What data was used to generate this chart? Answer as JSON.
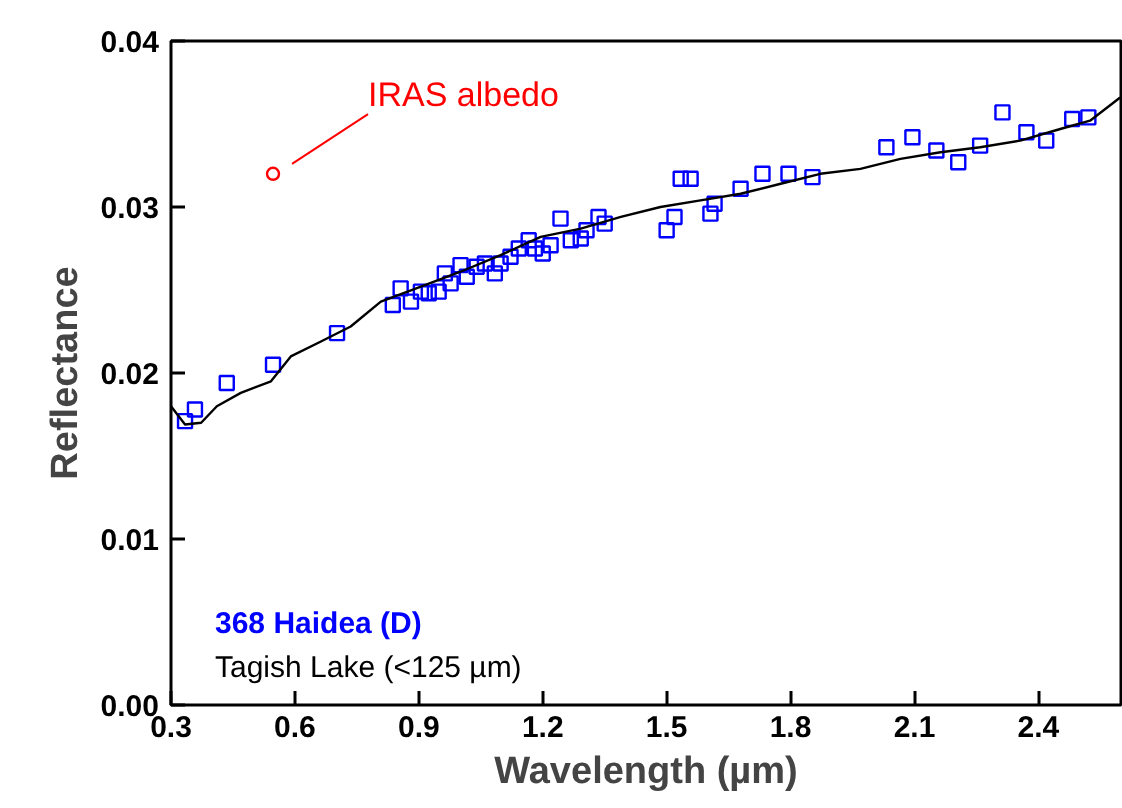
{
  "chart_data": {
    "type": "scatter",
    "xlabel": "Wavelength (µm)",
    "ylabel": "Reflectance",
    "xlim": [
      0.3,
      2.6
    ],
    "ylim": [
      0,
      0.04
    ],
    "xticks": [
      0.3,
      0.6,
      0.9,
      1.2,
      1.5,
      1.8,
      2.1,
      2.4
    ],
    "yticks": [
      {
        "value": 0,
        "label": "0.00"
      },
      {
        "value": 0.01,
        "label": "0.01"
      },
      {
        "value": 0.02,
        "label": "0.02"
      },
      {
        "value": 0.03,
        "label": "0.03"
      },
      {
        "value": 0.04,
        "label": "0.04"
      }
    ],
    "grid": false,
    "legend": "bottom left",
    "series": [
      {
        "name": "368 Haidea (D)",
        "marker": "square",
        "color": "#0000ff",
        "x": [
          0.334,
          0.358,
          0.435,
          0.547,
          0.702,
          0.837,
          0.856,
          0.881,
          0.905,
          0.924,
          0.948,
          0.963,
          0.977,
          1.001,
          1.016,
          1.04,
          1.06,
          1.084,
          1.098,
          1.122,
          1.142,
          1.166,
          1.181,
          1.2,
          1.219,
          1.243,
          1.268,
          1.292,
          1.306,
          1.335,
          1.35,
          1.5,
          1.519,
          1.534,
          1.558,
          1.606,
          1.616,
          1.679,
          1.732,
          1.795,
          1.853,
          2.032,
          2.095,
          2.153,
          2.206,
          2.259,
          2.313,
          2.371,
          2.419,
          2.482,
          2.521
        ],
        "values": [
          0.0171,
          0.0178,
          0.0194,
          0.0205,
          0.0224,
          0.0241,
          0.0251,
          0.0243,
          0.0249,
          0.0248,
          0.0249,
          0.026,
          0.0254,
          0.0265,
          0.0258,
          0.0264,
          0.0266,
          0.026,
          0.0266,
          0.027,
          0.0275,
          0.028,
          0.0275,
          0.0272,
          0.0277,
          0.0293,
          0.028,
          0.0281,
          0.0286,
          0.0294,
          0.029,
          0.0286,
          0.0294,
          0.0317,
          0.0317,
          0.0296,
          0.0302,
          0.0311,
          0.032,
          0.032,
          0.0318,
          0.0336,
          0.0342,
          0.0334,
          0.0327,
          0.0337,
          0.0357,
          0.0345,
          0.034,
          0.0353,
          0.0354
        ]
      },
      {
        "name": "Tagish Lake (<125 µm)",
        "type": "line",
        "color": "#000000",
        "x": [
          0.3,
          0.334,
          0.373,
          0.411,
          0.469,
          0.542,
          0.59,
          0.663,
          0.735,
          0.808,
          0.905,
          1.001,
          1.098,
          1.195,
          1.292,
          1.389,
          1.485,
          1.582,
          1.679,
          1.776,
          1.872,
          1.969,
          2.066,
          2.163,
          2.259,
          2.356,
          2.453,
          2.525,
          2.598
        ],
        "values": [
          0.018,
          0.0169,
          0.017,
          0.018,
          0.0188,
          0.0195,
          0.021,
          0.0219,
          0.0228,
          0.0243,
          0.0252,
          0.0261,
          0.0271,
          0.0282,
          0.0287,
          0.0294,
          0.03,
          0.0304,
          0.0308,
          0.0314,
          0.032,
          0.0323,
          0.0329,
          0.0333,
          0.0336,
          0.034,
          0.0347,
          0.0352,
          0.0366
        ]
      },
      {
        "name": "IRAS albedo",
        "marker": "circle",
        "color": "#ff0000",
        "x": [
          0.547
        ],
        "values": [
          0.032
        ]
      }
    ]
  }
}
